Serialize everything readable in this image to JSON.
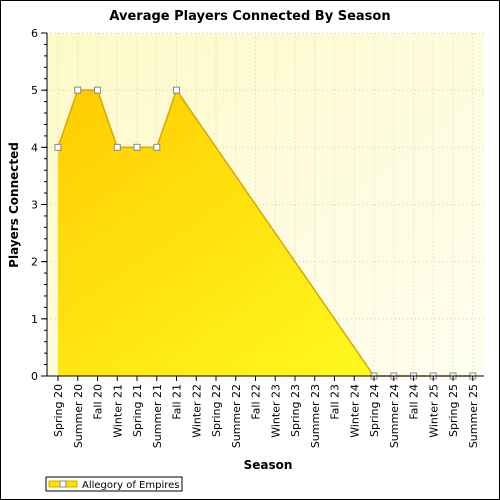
{
  "chart_data": {
    "type": "area",
    "title": "Average Players Connected By Season",
    "xlabel": "Season",
    "ylabel": "Players Connected",
    "ylim": [
      0,
      6
    ],
    "y_ticks": [
      "0",
      "1",
      "2",
      "3",
      "4",
      "5",
      "6"
    ],
    "grid": true,
    "legend_position": "bottom-left",
    "categories": [
      "Spring 20",
      "Summer 20",
      "Fall 20",
      "Winter 21",
      "Spring 21",
      "Summer 21",
      "Fall 21",
      "Winter 22",
      "Spring 22",
      "Summer 22",
      "Fall 22",
      "Winter 23",
      "Spring 23",
      "Summer 23",
      "Fall 23",
      "Winter 24",
      "Spring 24",
      "Summer 24",
      "Fall 24",
      "Winter 25",
      "Spring 25",
      "Summer 25"
    ],
    "series": [
      {
        "name": "Allegory of Empires",
        "color": "#ffe400",
        "line_color": "#d7a800",
        "values": [
          4,
          5,
          5,
          4,
          4,
          4,
          5,
          null,
          null,
          null,
          null,
          null,
          null,
          null,
          null,
          null,
          0,
          0,
          0,
          0,
          0,
          0
        ]
      }
    ]
  }
}
